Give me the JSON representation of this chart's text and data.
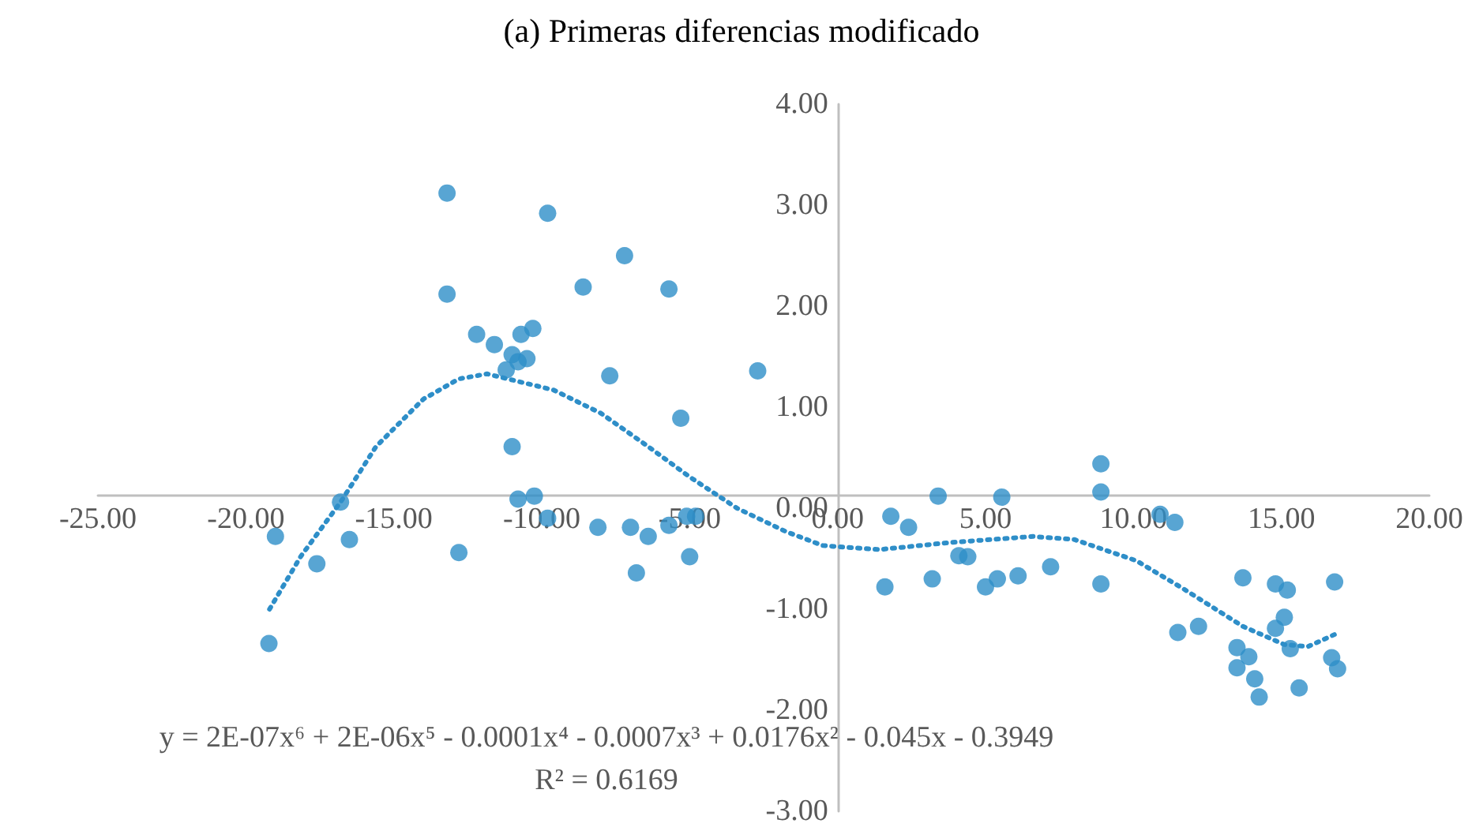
{
  "chart_data": {
    "type": "scatter",
    "title": "(a) Primeras diferencias modificado",
    "xlim": [
      -25,
      20
    ],
    "xticks": [
      {
        "value": -25,
        "label": "-25.00"
      },
      {
        "value": -20,
        "label": "-20.00"
      },
      {
        "value": -15,
        "label": "-15.00"
      },
      {
        "value": -10,
        "label": "-10.00"
      },
      {
        "value": -5,
        "label": "-5.00"
      },
      {
        "value": 0,
        "label": "0.00"
      },
      {
        "value": 5,
        "label": "5.00"
      },
      {
        "value": 10,
        "label": "10.00"
      },
      {
        "value": 15,
        "label": "15.00"
      },
      {
        "value": 20,
        "label": "20.00"
      }
    ],
    "ylim": [
      -3,
      4
    ],
    "yticks": [
      {
        "value": -3,
        "label": "-3.00"
      },
      {
        "value": -2,
        "label": "-2.00"
      },
      {
        "value": -1,
        "label": "-1.00"
      },
      {
        "value": 0,
        "label": "0.00"
      },
      {
        "value": 1,
        "label": "1.00"
      },
      {
        "value": 2,
        "label": "2.00"
      },
      {
        "value": 3,
        "label": "3.00"
      },
      {
        "value": 4,
        "label": "4.00"
      }
    ],
    "grid": false,
    "marker": "circle",
    "annotations": [
      "y = 2E-07x⁶ + 2E-06x⁵ - 0.0001x⁴ - 0.0007x³ + 0.0176x² - 0.045x - 0.3949",
      "R² = 0.6169"
    ],
    "series": [
      {
        "color": "#2e8ec8",
        "x": [
          -19.22,
          -19.0,
          -17.6,
          -16.8,
          -16.5,
          -13.2,
          -13.2,
          -12.8,
          -12.2,
          -11.6,
          -11.2,
          -11.0,
          -11.0,
          -10.8,
          -10.8,
          -10.7,
          -10.5,
          -10.3,
          -10.25,
          -9.8,
          -9.8,
          -8.6,
          -8.1,
          -7.7,
          -7.2,
          -7.0,
          -6.8,
          -6.4,
          -5.7,
          -5.7,
          -5.3,
          -5.1,
          -4.8,
          -5.0,
          -2.7,
          1.6,
          1.8,
          2.4,
          3.2,
          3.4,
          4.1,
          4.4,
          5.0,
          5.4,
          5.55,
          6.1,
          7.2,
          8.9,
          8.9,
          8.9,
          10.9,
          11.4,
          11.5,
          12.2,
          13.5,
          13.5,
          13.7,
          13.9,
          14.1,
          14.25,
          14.8,
          14.8,
          15.1,
          15.2,
          15.3,
          15.6,
          16.7,
          16.8,
          16.9
        ],
        "values": [
          -1.34,
          -0.28,
          -0.55,
          0.06,
          -0.31,
          3.12,
          2.12,
          -0.44,
          1.72,
          1.62,
          1.37,
          0.61,
          1.52,
          1.45,
          0.09,
          1.72,
          1.48,
          1.78,
          0.12,
          2.92,
          -0.1,
          2.19,
          -0.19,
          1.31,
          2.5,
          -0.19,
          -0.64,
          -0.28,
          2.17,
          -0.17,
          0.89,
          -0.08,
          -0.08,
          -0.48,
          1.36,
          -0.78,
          -0.08,
          -0.19,
          -0.7,
          0.12,
          -0.47,
          -0.48,
          -0.78,
          -0.7,
          0.11,
          -0.67,
          -0.58,
          -0.75,
          0.16,
          0.44,
          -0.06,
          -0.14,
          -1.23,
          -1.17,
          -1.38,
          -1.58,
          -0.69,
          -1.47,
          -1.69,
          -1.87,
          -1.19,
          -0.75,
          -1.08,
          -0.81,
          -1.39,
          -1.78,
          -1.48,
          -0.73,
          -1.59
        ]
      },
      {
        "type": "line",
        "color": "#2e8ec8",
        "marker": "none",
        "line_style": "dotted",
        "x": [
          -19.2,
          -18.15,
          -16.8,
          -15.6,
          -14.0,
          -12.8,
          -11.85,
          -9.6,
          -8.0,
          -6.4,
          -5.0,
          -3.4,
          -1.76,
          -0.5,
          1.4,
          3.8,
          6.6,
          8.0,
          10.1,
          11.7,
          13.7,
          15.1,
          15.9,
          16.8
        ],
        "values": [
          -1.0,
          -0.48,
          0.06,
          0.61,
          1.08,
          1.28,
          1.33,
          1.17,
          0.94,
          0.61,
          0.31,
          0.0,
          -0.23,
          -0.37,
          -0.41,
          -0.34,
          -0.28,
          -0.31,
          -0.52,
          -0.8,
          -1.17,
          -1.35,
          -1.37,
          -1.25
        ]
      }
    ]
  }
}
